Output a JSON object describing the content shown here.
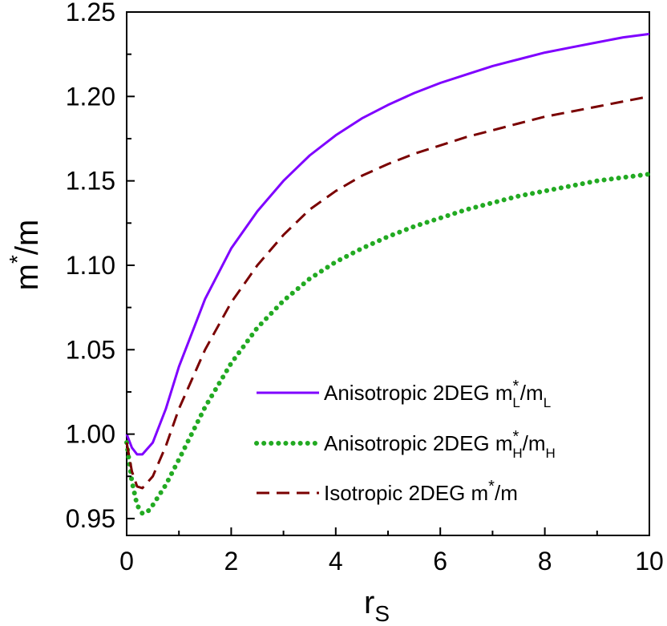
{
  "chart_data": {
    "type": "line",
    "title": "",
    "xlabel": "r",
    "xlabel_sub": "S",
    "ylabel": "m",
    "ylabel_sup": "*",
    "ylabel_tail": "/m",
    "xlim": [
      0,
      10
    ],
    "ylim": [
      0.94,
      1.25
    ],
    "xticks": [
      0,
      2,
      4,
      6,
      8,
      10
    ],
    "xtick_labels": [
      "0",
      "2",
      "4",
      "6",
      "8",
      "10"
    ],
    "yticks": [
      0.95,
      1.0,
      1.05,
      1.1,
      1.15,
      1.2,
      1.25
    ],
    "ytick_labels": [
      "0.95",
      "1.00",
      "1.05",
      "1.10",
      "1.15",
      "1.20",
      "1.25"
    ],
    "legend_position": "lower-right",
    "series": [
      {
        "name": "Anisotropic 2DEG m*L/mL",
        "legend_parts": [
          "Anisotropic 2DEG m",
          "*",
          "L",
          "/m",
          "L"
        ],
        "color": "#7f00ff",
        "style": "solid",
        "x": [
          0,
          0.1,
          0.2,
          0.3,
          0.5,
          0.75,
          1,
          1.5,
          2,
          2.5,
          3,
          3.5,
          4,
          4.5,
          5,
          5.5,
          6,
          6.5,
          7,
          7.5,
          8,
          8.5,
          9,
          9.5,
          10
        ],
        "y": [
          1.0,
          0.992,
          0.988,
          0.988,
          0.995,
          1.015,
          1.04,
          1.08,
          1.11,
          1.132,
          1.15,
          1.165,
          1.177,
          1.187,
          1.195,
          1.202,
          1.208,
          1.213,
          1.218,
          1.222,
          1.226,
          1.229,
          1.232,
          1.235,
          1.237
        ]
      },
      {
        "name": "Anisotropic 2DEG m*H/mH",
        "legend_parts": [
          "Anisotropic 2DEG m",
          "*",
          "H",
          "/m",
          "H"
        ],
        "color": "#22aa22",
        "style": "dotted",
        "x": [
          0,
          0.1,
          0.2,
          0.3,
          0.4,
          0.5,
          0.75,
          1,
          1.5,
          2,
          2.5,
          3,
          3.5,
          4,
          4.5,
          5,
          5.5,
          6,
          6.5,
          7,
          7.5,
          8,
          8.5,
          9,
          9.5,
          10
        ],
        "y": [
          0.995,
          0.972,
          0.958,
          0.953,
          0.954,
          0.958,
          0.97,
          0.985,
          1.016,
          1.042,
          1.063,
          1.079,
          1.092,
          1.102,
          1.11,
          1.117,
          1.123,
          1.128,
          1.133,
          1.137,
          1.141,
          1.144,
          1.147,
          1.15,
          1.152,
          1.154
        ]
      },
      {
        "name": "Isotropic 2DEG m*/m",
        "legend_parts": [
          "Isotropic 2DEG m",
          "*",
          "",
          "/m",
          ""
        ],
        "color": "#7a0000",
        "style": "dashed",
        "x": [
          0,
          0.1,
          0.2,
          0.3,
          0.5,
          0.75,
          1,
          1.5,
          2,
          2.5,
          3,
          3.5,
          4,
          4.5,
          5,
          5.5,
          6,
          6.5,
          7,
          7.5,
          8,
          8.5,
          9,
          9.5,
          10
        ],
        "y": [
          0.995,
          0.978,
          0.969,
          0.968,
          0.975,
          0.993,
          1.015,
          1.05,
          1.078,
          1.1,
          1.118,
          1.133,
          1.144,
          1.153,
          1.16,
          1.166,
          1.171,
          1.176,
          1.18,
          1.184,
          1.188,
          1.191,
          1.194,
          1.197,
          1.2
        ]
      }
    ]
  }
}
